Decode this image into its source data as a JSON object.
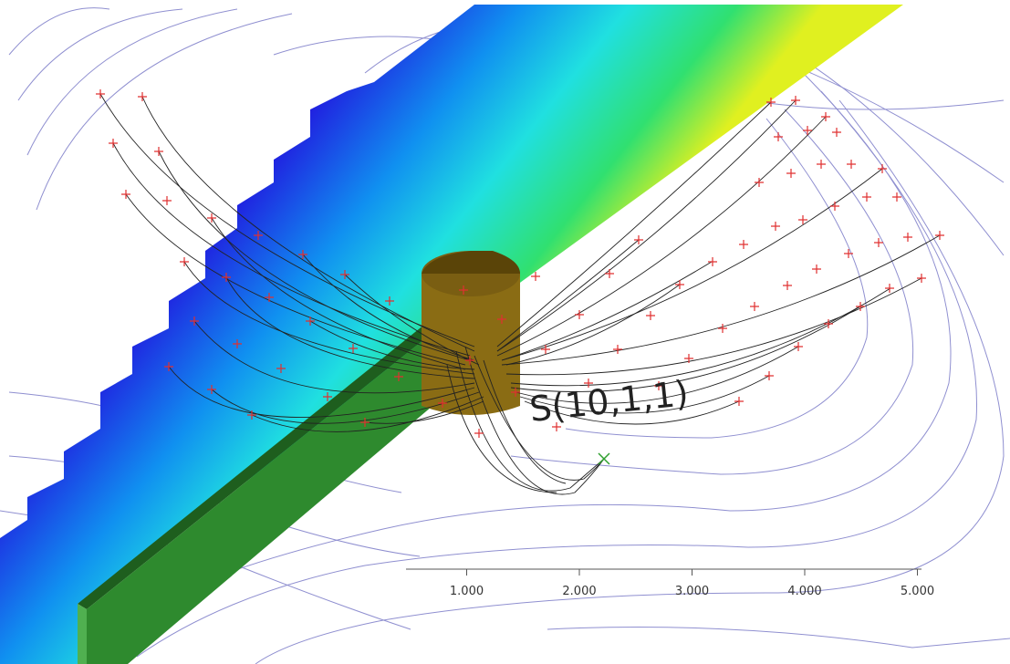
{
  "annotation": "S(10,1,1)",
  "scale_bar": {
    "ticks": [
      {
        "value": 1,
        "label": "1.000"
      },
      {
        "value": 2,
        "label": "2.000"
      },
      {
        "value": 3,
        "label": "3.000"
      },
      {
        "value": 4,
        "label": "4.000"
      },
      {
        "value": 5,
        "label": "5.000"
      }
    ]
  }
}
